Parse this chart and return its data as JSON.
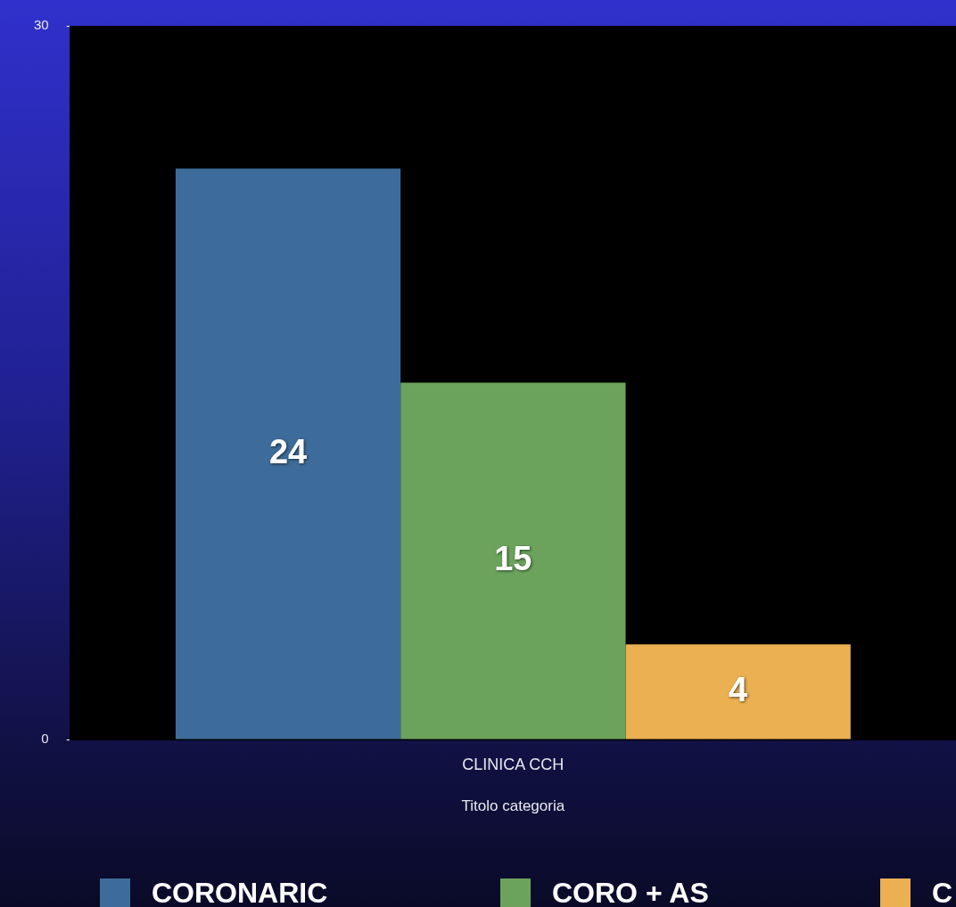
{
  "chart_data": {
    "type": "bar",
    "categories": [
      "CLINICA CCH"
    ],
    "xlabel": "Titolo categoria",
    "series": [
      {
        "name": "CORONARIC",
        "color": "#3e6c9a",
        "values": [
          24
        ]
      },
      {
        "name": "CORO + AS",
        "color": "#6ca35c",
        "values": [
          15
        ]
      },
      {
        "name": "C",
        "color": "#eab052",
        "values": [
          4
        ]
      }
    ],
    "ylim": [
      0,
      30
    ],
    "yticks": [
      0,
      30
    ],
    "grid": false,
    "legend": "bottom",
    "data_labels": true
  }
}
